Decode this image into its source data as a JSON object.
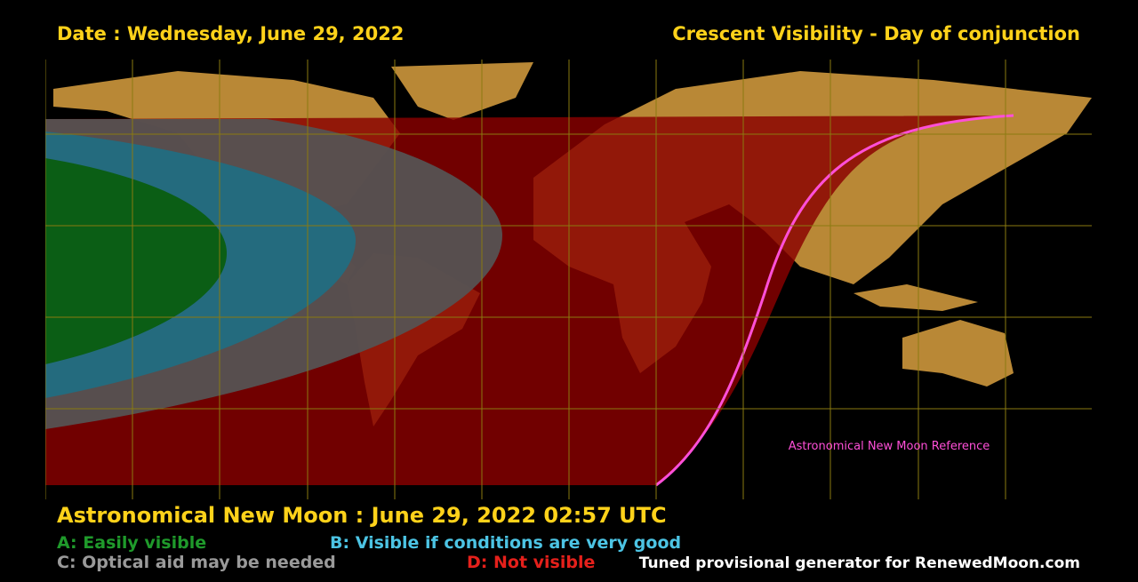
{
  "header": {
    "date": "Date : Wednesday, June 29, 2022",
    "title": "Crescent Visibility - Day of conjunction"
  },
  "map": {
    "reference_label": "Astronomical New Moon Reference"
  },
  "footer": {
    "new_moon": "Astronomical New Moon : June 29, 2022 02:57 UTC",
    "legend": [
      {
        "label": "A: Easily visible",
        "color": "#1f9a2b"
      },
      {
        "label": "B: Visible if conditions are very good",
        "color": "#4cc4e4"
      },
      {
        "label": "C: Optical aid may be needed",
        "color": "#9a9a9a"
      },
      {
        "label": "D: Not visible",
        "color": "#e5201b"
      }
    ],
    "credit": "Tuned provisional generator for RenewedMoon.com"
  }
}
